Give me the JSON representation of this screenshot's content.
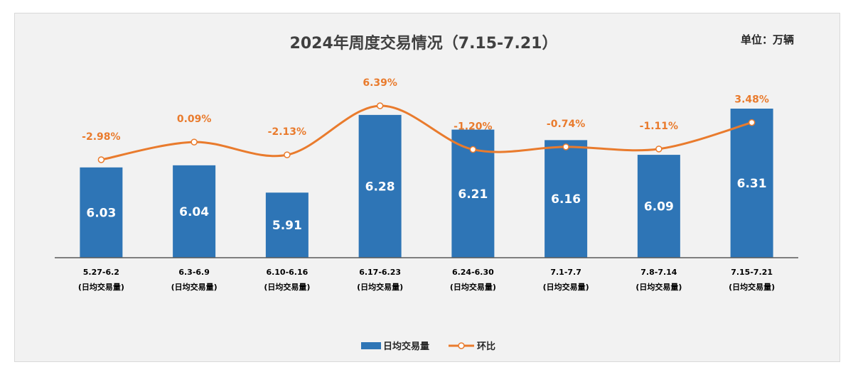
{
  "chart_data": {
    "type": "bar",
    "title": "2024年周度交易情况（7.15-7.21）",
    "unit_label": "单位：万辆",
    "categories": [
      [
        "5.27-6.2",
        "(日均交易量)"
      ],
      [
        "6.3-6.9",
        "(日均交易量)"
      ],
      [
        "6.10-6.16",
        "(日均交易量)"
      ],
      [
        "6.17-6.23",
        "(日均交易量)"
      ],
      [
        "6.24-6.30",
        "(日均交易量)"
      ],
      [
        "7.1-7.7",
        "(日均交易量)"
      ],
      [
        "7.8-7.14",
        "(日均交易量)"
      ],
      [
        "7.15-7.21",
        "(日均交易量)"
      ]
    ],
    "series": [
      {
        "name": "日均交易量",
        "kind": "bar",
        "color": "#2e75b6",
        "values": [
          6.03,
          6.04,
          5.91,
          6.28,
          6.21,
          6.16,
          6.09,
          6.31
        ],
        "labels": [
          "6.03",
          "6.04",
          "5.91",
          "6.28",
          "6.21",
          "6.16",
          "6.09",
          "6.31"
        ]
      },
      {
        "name": "环比",
        "kind": "line",
        "smooth": true,
        "color": "#e97b2d",
        "values": [
          -2.98,
          0.09,
          -2.13,
          6.39,
          -1.2,
          -0.74,
          -1.11,
          3.48
        ],
        "labels": [
          "-2.98%",
          "0.09%",
          "-2.13%",
          "6.39%",
          "-1.20%",
          "-0.74%",
          "-1.11%",
          "3.48%"
        ]
      }
    ],
    "legend": {
      "position": "bottom"
    }
  }
}
